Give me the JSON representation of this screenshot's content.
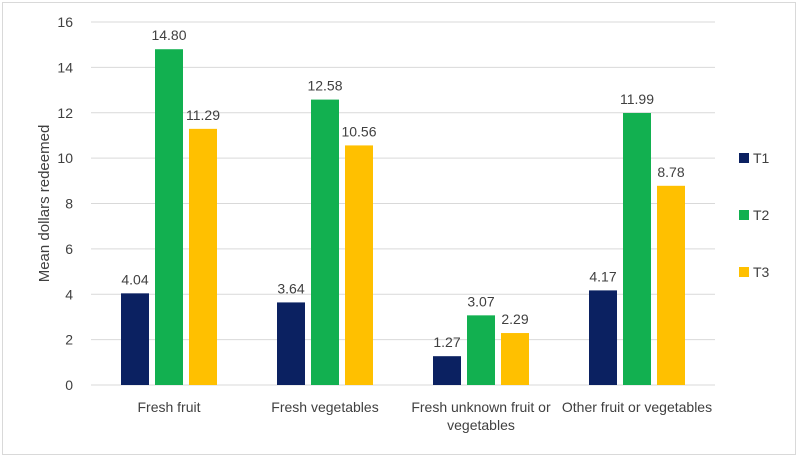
{
  "chart_data": {
    "type": "bar",
    "title": "",
    "xlabel": "",
    "ylabel": "Mean dollars redeemed",
    "ylim": [
      0,
      16
    ],
    "yticks": [
      0,
      2,
      4,
      6,
      8,
      10,
      12,
      14,
      16
    ],
    "grid": true,
    "legend_position": "right",
    "categories": [
      [
        "Fresh fruit"
      ],
      [
        "Fresh vegetables"
      ],
      [
        "Fresh unknown fruit or",
        "vegetables"
      ],
      [
        "Other fruit or vegetables"
      ]
    ],
    "series": [
      {
        "name": "T1",
        "color": "#0b2161",
        "values": [
          4.04,
          3.64,
          1.27,
          4.17
        ],
        "labels": [
          "4.04",
          "3.64",
          "1.27",
          "4.17"
        ]
      },
      {
        "name": "T2",
        "color": "#12b050",
        "values": [
          14.8,
          12.58,
          3.07,
          11.99
        ],
        "labels": [
          "14.80",
          "12.58",
          "3.07",
          "11.99"
        ]
      },
      {
        "name": "T3",
        "color": "#ffc000",
        "values": [
          11.29,
          10.56,
          2.29,
          8.78
        ],
        "labels": [
          "11.29",
          "10.56",
          "2.29",
          "8.78"
        ]
      }
    ]
  }
}
